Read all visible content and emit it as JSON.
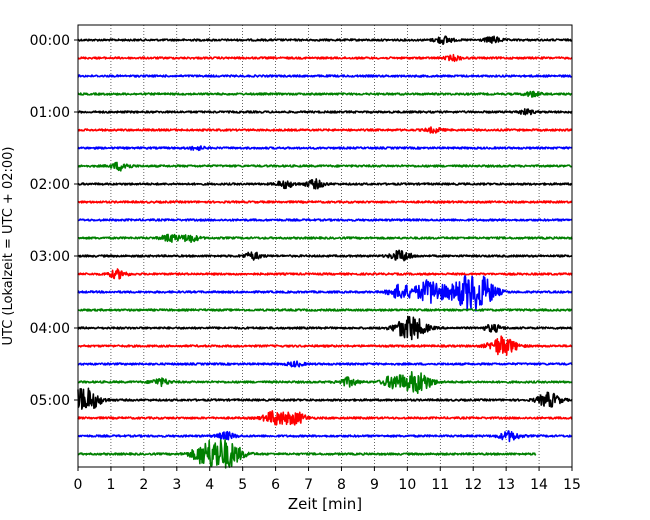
{
  "chart_data": {
    "type": "line",
    "xlabel": "Zeit  [min]",
    "ylabel": "UTC (Lokalzeit = UTC + 02:00)",
    "xlim": [
      0,
      15
    ],
    "x_ticks": [
      "0",
      "1",
      "2",
      "3",
      "4",
      "5",
      "6",
      "7",
      "8",
      "9",
      "10",
      "11",
      "12",
      "13",
      "14",
      "15"
    ],
    "grid": "vertical dotted lines at each minute",
    "trace_interval_min": 15,
    "trace_colors": [
      "#000000",
      "#ff0000",
      "#0000ff",
      "#008000"
    ],
    "y_tick_labels": [
      "00:00",
      "01:00",
      "02:00",
      "03:00",
      "04:00",
      "05:00"
    ],
    "traces": [
      {
        "start": "00:00",
        "color": "#000000",
        "end_min": 15,
        "bursts": [
          {
            "t": 11.1,
            "amp": 0.3
          },
          {
            "t": 12.6,
            "amp": 0.25
          }
        ]
      },
      {
        "start": "00:15",
        "color": "#ff0000",
        "end_min": 15,
        "bursts": [
          {
            "t": 11.4,
            "amp": 0.2
          }
        ]
      },
      {
        "start": "00:30",
        "color": "#0000ff",
        "end_min": 15,
        "bursts": []
      },
      {
        "start": "00:45",
        "color": "#008000",
        "end_min": 15,
        "bursts": [
          {
            "t": 13.8,
            "amp": 0.2
          }
        ]
      },
      {
        "start": "01:00",
        "color": "#000000",
        "end_min": 15,
        "bursts": [
          {
            "t": 13.6,
            "amp": 0.2
          }
        ]
      },
      {
        "start": "01:15",
        "color": "#ff0000",
        "end_min": 15,
        "bursts": [
          {
            "t": 10.8,
            "amp": 0.2
          }
        ]
      },
      {
        "start": "01:30",
        "color": "#0000ff",
        "end_min": 15,
        "bursts": [
          {
            "t": 3.6,
            "amp": 0.15
          }
        ]
      },
      {
        "start": "01:45",
        "color": "#008000",
        "end_min": 15,
        "bursts": [
          {
            "t": 1.3,
            "amp": 0.35
          }
        ]
      },
      {
        "start": "02:00",
        "color": "#000000",
        "end_min": 15,
        "bursts": [
          {
            "t": 6.3,
            "amp": 0.3
          },
          {
            "t": 7.2,
            "amp": 0.35
          }
        ]
      },
      {
        "start": "02:15",
        "color": "#ff0000",
        "end_min": 15,
        "bursts": []
      },
      {
        "start": "02:30",
        "color": "#0000ff",
        "end_min": 15,
        "bursts": []
      },
      {
        "start": "02:45",
        "color": "#008000",
        "end_min": 15,
        "bursts": [
          {
            "t": 2.8,
            "amp": 0.3
          },
          {
            "t": 3.4,
            "amp": 0.3
          }
        ]
      },
      {
        "start": "03:00",
        "color": "#000000",
        "end_min": 15,
        "bursts": [
          {
            "t": 5.3,
            "amp": 0.3
          },
          {
            "t": 9.8,
            "amp": 0.45
          }
        ]
      },
      {
        "start": "03:15",
        "color": "#ff0000",
        "end_min": 15,
        "bursts": [
          {
            "t": 1.2,
            "amp": 0.35
          }
        ]
      },
      {
        "start": "03:30",
        "color": "#0000ff",
        "end_min": 15,
        "bursts": [
          {
            "t": 9.8,
            "amp": 0.6
          },
          {
            "t": 10.7,
            "amp": 1.0
          },
          {
            "t": 11.8,
            "amp": 1.2
          },
          {
            "t": 12.3,
            "amp": 0.9
          }
        ]
      },
      {
        "start": "03:45",
        "color": "#008000",
        "end_min": 15,
        "bursts": []
      },
      {
        "start": "04:00",
        "color": "#000000",
        "end_min": 15,
        "bursts": [
          {
            "t": 10.1,
            "amp": 1.0
          },
          {
            "t": 12.6,
            "amp": 0.3
          }
        ]
      },
      {
        "start": "04:15",
        "color": "#ff0000",
        "end_min": 15,
        "bursts": [
          {
            "t": 12.9,
            "amp": 0.8
          }
        ]
      },
      {
        "start": "04:30",
        "color": "#0000ff",
        "end_min": 15,
        "bursts": [
          {
            "t": 6.6,
            "amp": 0.2
          }
        ]
      },
      {
        "start": "04:45",
        "color": "#008000",
        "end_min": 15,
        "bursts": [
          {
            "t": 2.5,
            "amp": 0.3
          },
          {
            "t": 8.2,
            "amp": 0.35
          },
          {
            "t": 9.6,
            "amp": 0.55
          },
          {
            "t": 10.3,
            "amp": 0.9
          }
        ]
      },
      {
        "start": "05:00",
        "color": "#000000",
        "end_min": 15,
        "bursts": [
          {
            "t": 0.2,
            "amp": 1.0
          },
          {
            "t": 14.3,
            "amp": 0.6
          }
        ]
      },
      {
        "start": "05:15",
        "color": "#ff0000",
        "end_min": 15,
        "bursts": [
          {
            "t": 6.0,
            "amp": 0.6
          },
          {
            "t": 6.6,
            "amp": 0.5
          }
        ]
      },
      {
        "start": "05:30",
        "color": "#0000ff",
        "end_min": 15,
        "bursts": [
          {
            "t": 4.5,
            "amp": 0.3
          },
          {
            "t": 13.1,
            "amp": 0.4
          }
        ]
      },
      {
        "start": "05:45",
        "color": "#008000",
        "end_min": 13.9,
        "bursts": [
          {
            "t": 3.9,
            "amp": 0.9
          },
          {
            "t": 4.5,
            "amp": 1.1
          }
        ]
      }
    ]
  }
}
